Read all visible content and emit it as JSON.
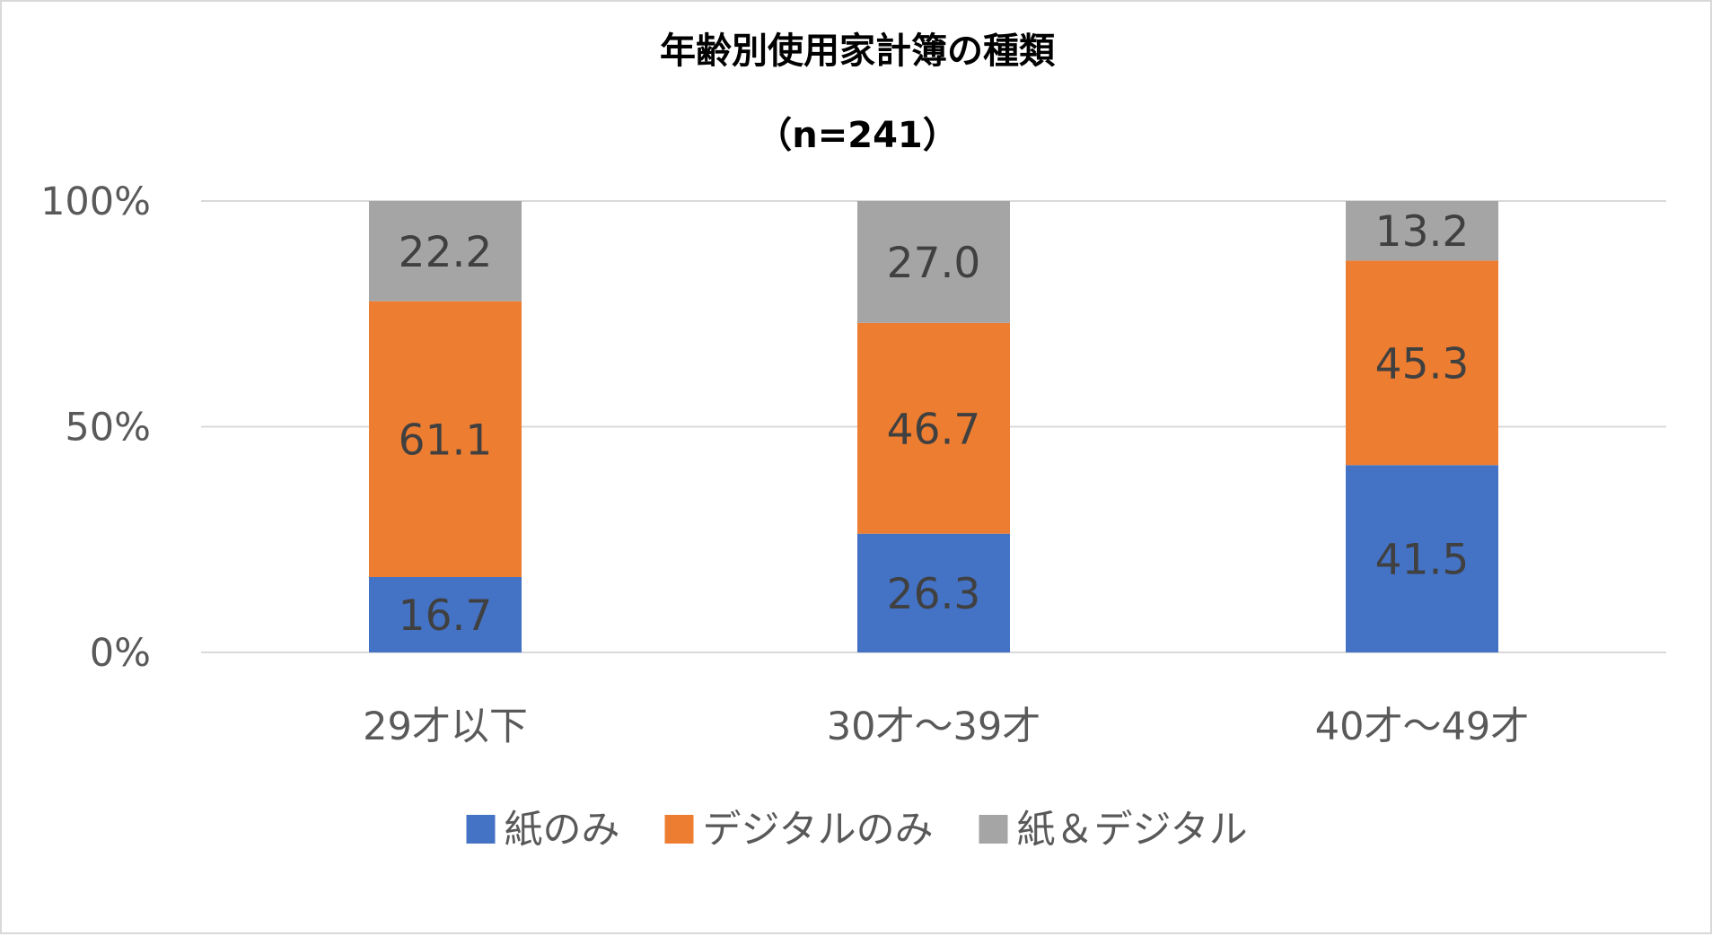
{
  "chart_data": {
    "type": "bar",
    "stacked": true,
    "percent_stacked": true,
    "title": "年齢別使用家計簿の種類",
    "subtitle": "（n=241）",
    "categories": [
      "29才以下",
      "30才～39才",
      "40才～49才"
    ],
    "series": [
      {
        "name": "紙のみ",
        "color": "#4472c4",
        "values": [
          16.7,
          26.3,
          41.5
        ],
        "labels": [
          "16.7",
          "26.3",
          "41.5"
        ]
      },
      {
        "name": "デジタルのみ",
        "color": "#ed7d31",
        "values": [
          61.1,
          46.7,
          45.3
        ],
        "labels": [
          "61.1",
          "46.7",
          "45.3"
        ]
      },
      {
        "name": "紙＆デジタル",
        "color": "#a5a5a5",
        "values": [
          22.2,
          27.0,
          13.2
        ],
        "labels": [
          "22.2",
          "27.0",
          "13.2"
        ]
      }
    ],
    "yticks": [
      {
        "value": 0,
        "label": "0%"
      },
      {
        "value": 50,
        "label": "50%"
      },
      {
        "value": 100,
        "label": "100%"
      }
    ],
    "ylim": [
      0,
      100
    ],
    "grid": true,
    "legend_position": "bottom"
  }
}
